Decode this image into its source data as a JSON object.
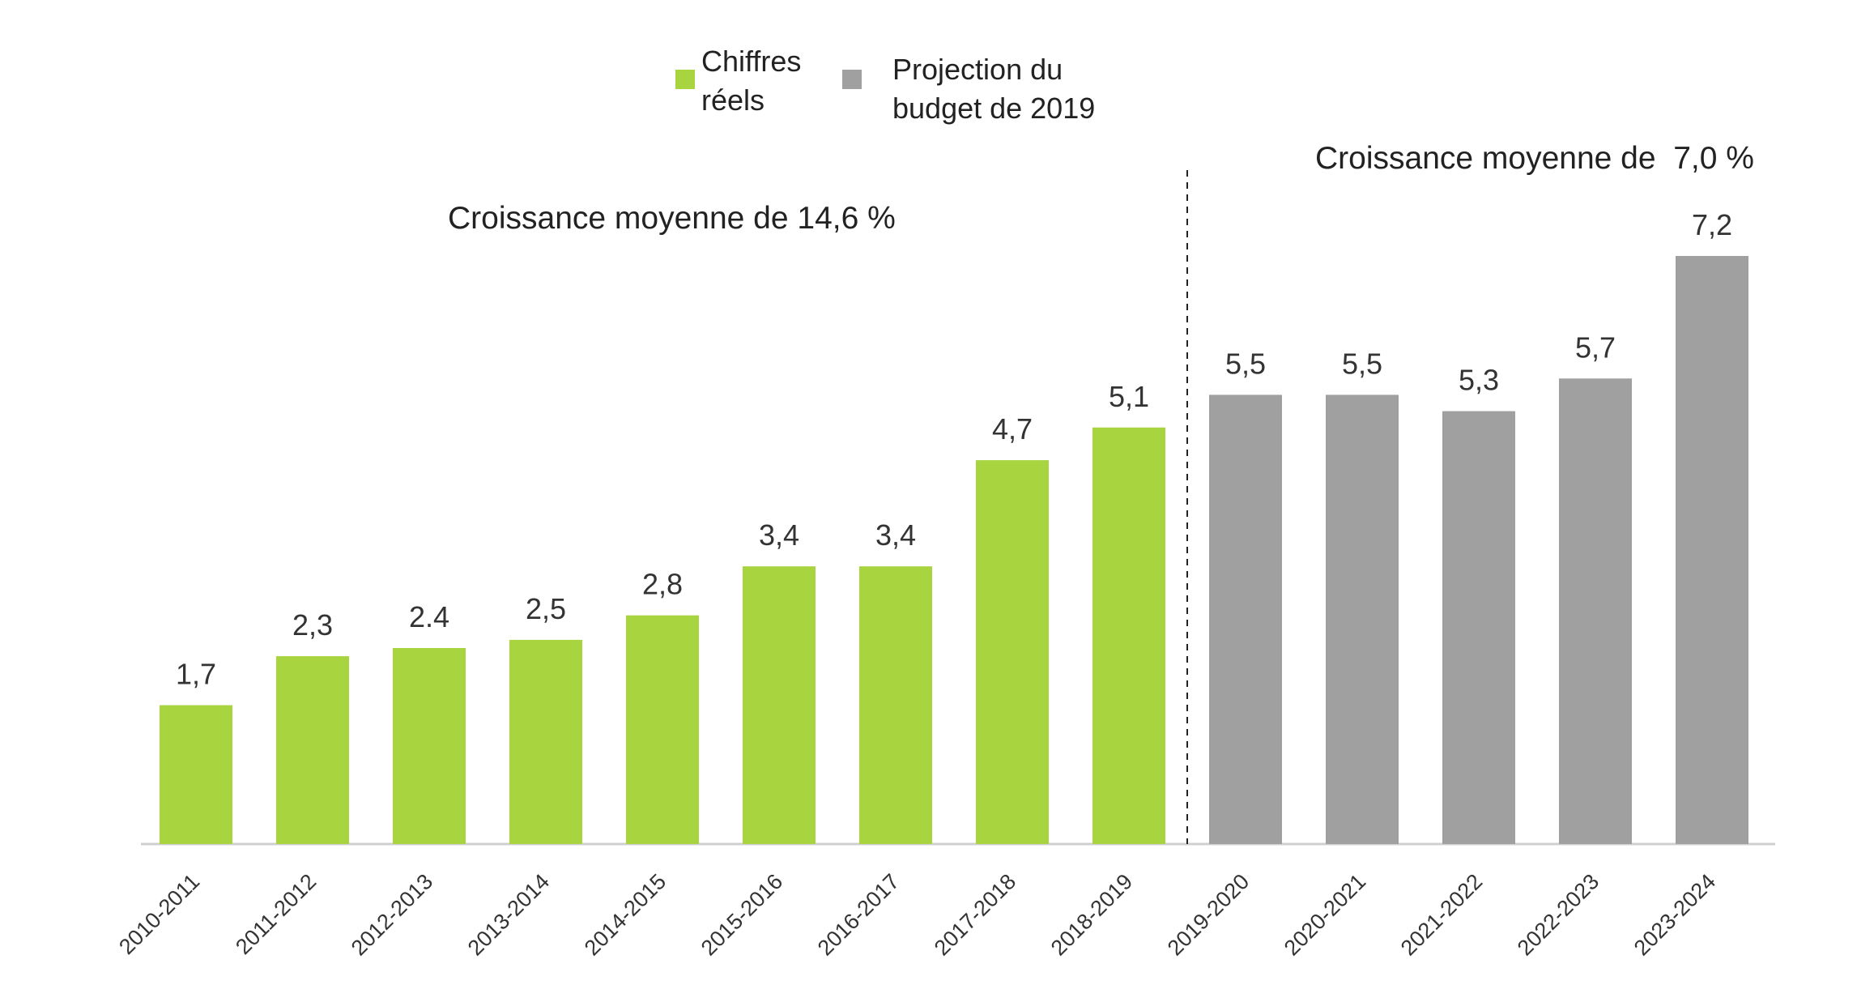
{
  "chart_data": {
    "type": "bar",
    "categories": [
      "2010-2011",
      "2011-2012",
      "2012-2013",
      "2013-2014",
      "2014-2015",
      "2015-2016",
      "2016-2017",
      "2017-2018",
      "2018-2019",
      "2019-2020",
      "2020-2021",
      "2021-2022",
      "2022-2023",
      "2023-2024"
    ],
    "series": [
      {
        "name": "Chiffres réels",
        "color": "#a8d440",
        "values": [
          1.7,
          2.3,
          2.4,
          2.5,
          2.8,
          3.4,
          3.4,
          4.7,
          5.1,
          null,
          null,
          null,
          null,
          null
        ]
      },
      {
        "name": "Projection du budget de 2019",
        "color": "#a0a0a0",
        "values": [
          null,
          null,
          null,
          null,
          null,
          null,
          null,
          null,
          null,
          5.5,
          5.5,
          5.3,
          5.7,
          7.2
        ]
      }
    ],
    "data_labels": [
      "1,7",
      "2,3",
      "2.4",
      "2,5",
      "2,8",
      "3,4",
      "3,4",
      "4,7",
      "5,1",
      "5,5",
      "5,5",
      "5,3",
      "5,7",
      "7,2"
    ],
    "ylim": [
      0,
      7.2
    ],
    "grid": false,
    "legend": {
      "position": "top",
      "entries": [
        {
          "lines": [
            "Chiffres",
            "réels"
          ],
          "color": "#a8d440"
        },
        {
          "lines": [
            "Projection du",
            "budget de 2019"
          ],
          "color": "#a0a0a0"
        }
      ]
    },
    "annotations": {
      "left": "Croissance moyenne de 14,6 %",
      "right": "Croissance moyenne de  7,0 %"
    },
    "divider": {
      "style": "dashed",
      "between": [
        "2018-2019",
        "2019-2020"
      ]
    }
  }
}
